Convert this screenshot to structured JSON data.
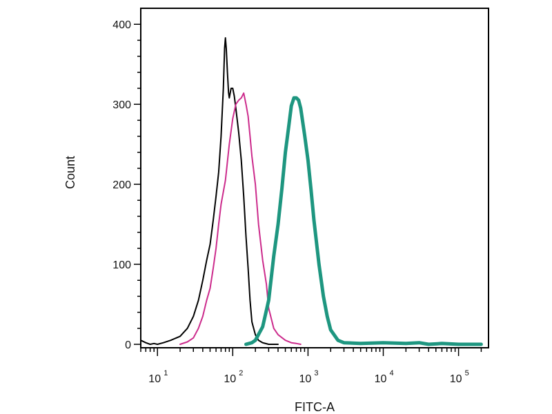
{
  "chart_data": {
    "type": "line",
    "title": "",
    "xlabel": "FITC-A",
    "ylabel": "Count",
    "xscale": "log",
    "xlim": [
      6,
      250000
    ],
    "ylim": [
      0,
      420
    ],
    "grid": false,
    "legend": "none",
    "x_ticks": [
      {
        "base": "10",
        "exp": "1",
        "value": 10
      },
      {
        "base": "10",
        "exp": "2",
        "value": 100
      },
      {
        "base": "10",
        "exp": "3",
        "value": 1000
      },
      {
        "base": "10",
        "exp": "4",
        "value": 10000
      },
      {
        "base": "10",
        "exp": "5",
        "value": 100000
      }
    ],
    "y_ticks": [
      "0",
      "100",
      "200",
      "300",
      "400"
    ],
    "series": [
      {
        "color": "#000000",
        "width": 2,
        "x": [
          6,
          7,
          8,
          9,
          10,
          12,
          15,
          20,
          25,
          30,
          35,
          40,
          45,
          50,
          55,
          60,
          65,
          70,
          75,
          78,
          80,
          82,
          85,
          88,
          90,
          95,
          100,
          105,
          110,
          120,
          130,
          140,
          150,
          160,
          170,
          180,
          200,
          220,
          250,
          300,
          400
        ],
        "y": [
          5,
          2,
          0,
          1,
          0,
          2,
          5,
          10,
          20,
          35,
          55,
          80,
          105,
          125,
          155,
          185,
          215,
          260,
          320,
          370,
          383,
          370,
          340,
          315,
          308,
          320,
          320,
          310,
          295,
          265,
          230,
          185,
          135,
          95,
          55,
          28,
          12,
          5,
          2,
          0,
          0
        ]
      },
      {
        "color": "#cc2b8c",
        "width": 2,
        "x": [
          20,
          25,
          30,
          35,
          40,
          45,
          50,
          55,
          60,
          65,
          70,
          80,
          90,
          100,
          110,
          120,
          130,
          140,
          150,
          160,
          170,
          180,
          200,
          220,
          250,
          280,
          300,
          350,
          400,
          500,
          600,
          700,
          800
        ],
        "y": [
          0,
          3,
          8,
          20,
          35,
          55,
          70,
          95,
          120,
          150,
          175,
          205,
          250,
          282,
          300,
          305,
          308,
          314,
          300,
          285,
          260,
          235,
          200,
          150,
          105,
          75,
          45,
          20,
          12,
          5,
          2,
          1,
          0
        ]
      },
      {
        "color": "#1e9680",
        "width": 5,
        "x": [
          150,
          180,
          200,
          250,
          300,
          350,
          400,
          450,
          500,
          550,
          600,
          650,
          700,
          750,
          800,
          900,
          1000,
          1100,
          1200,
          1400,
          1600,
          1800,
          2000,
          2500,
          3000,
          5000,
          10000,
          20000,
          30000,
          40000,
          60000,
          100000,
          200000
        ],
        "y": [
          0,
          2,
          5,
          22,
          55,
          110,
          150,
          195,
          240,
          270,
          298,
          308,
          308,
          305,
          295,
          262,
          230,
          192,
          155,
          100,
          60,
          35,
          18,
          5,
          2,
          1,
          2,
          1,
          2,
          0,
          1,
          0,
          0
        ]
      }
    ]
  }
}
